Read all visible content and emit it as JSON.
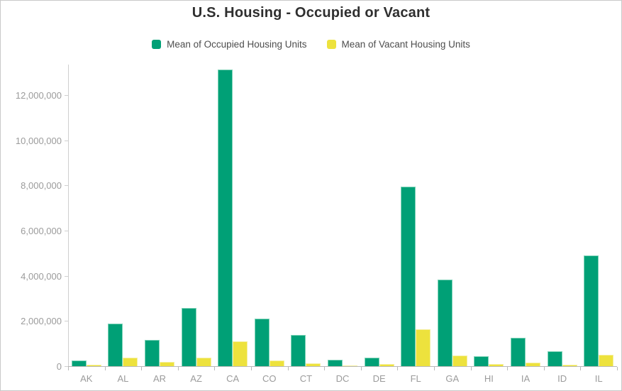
{
  "page": {
    "background": "#ffffff",
    "border_color": "#c9c9c9"
  },
  "colors": {
    "title_text": "#2f2f2f",
    "legend_text": "#4d4d4d",
    "axis_text": "#9b9b9b",
    "axis_line": "#cfcfcf",
    "baseline": "#b9b9b9",
    "occupied_green": "#00a076",
    "occupied_green_border": "#7fd3b8",
    "vacant_yellow": "#ede23d",
    "vacant_yellow_border": "#f5efa0"
  },
  "chart_data": {
    "type": "bar",
    "title": "U.S. Housing - Occupied or Vacant",
    "xlabel": "",
    "ylabel": "",
    "grid": false,
    "legend_position": "top",
    "categories": [
      "AK",
      "AL",
      "AR",
      "AZ",
      "CA",
      "CO",
      "CT",
      "DC",
      "DE",
      "FL",
      "GA",
      "HI",
      "IA",
      "ID",
      "IL"
    ],
    "series": [
      {
        "name": "Mean of Occupied Housing Units",
        "color": "#00a076",
        "border_color": "#7fd3b8",
        "values": [
          250000,
          1880000,
          1160000,
          2590000,
          13130000,
          2110000,
          1380000,
          280000,
          365000,
          7930000,
          3820000,
          450000,
          1265000,
          650000,
          4890000
        ]
      },
      {
        "name": "Mean of Vacant Housing Units",
        "color": "#ede23d",
        "border_color": "#f5efa0",
        "values": [
          70000,
          380000,
          190000,
          390000,
          1090000,
          240000,
          115000,
          30000,
          85000,
          1620000,
          480000,
          85000,
          150000,
          70000,
          490000
        ]
      }
    ],
    "y_ticks": [
      "0",
      "2,000,000",
      "4,000,000",
      "6,000,000",
      "8,000,000",
      "10,000,000",
      "12,000,000"
    ],
    "y_tick_values": [
      0,
      2000000,
      4000000,
      6000000,
      8000000,
      10000000,
      12000000
    ],
    "ylim": [
      0,
      13350000
    ]
  }
}
